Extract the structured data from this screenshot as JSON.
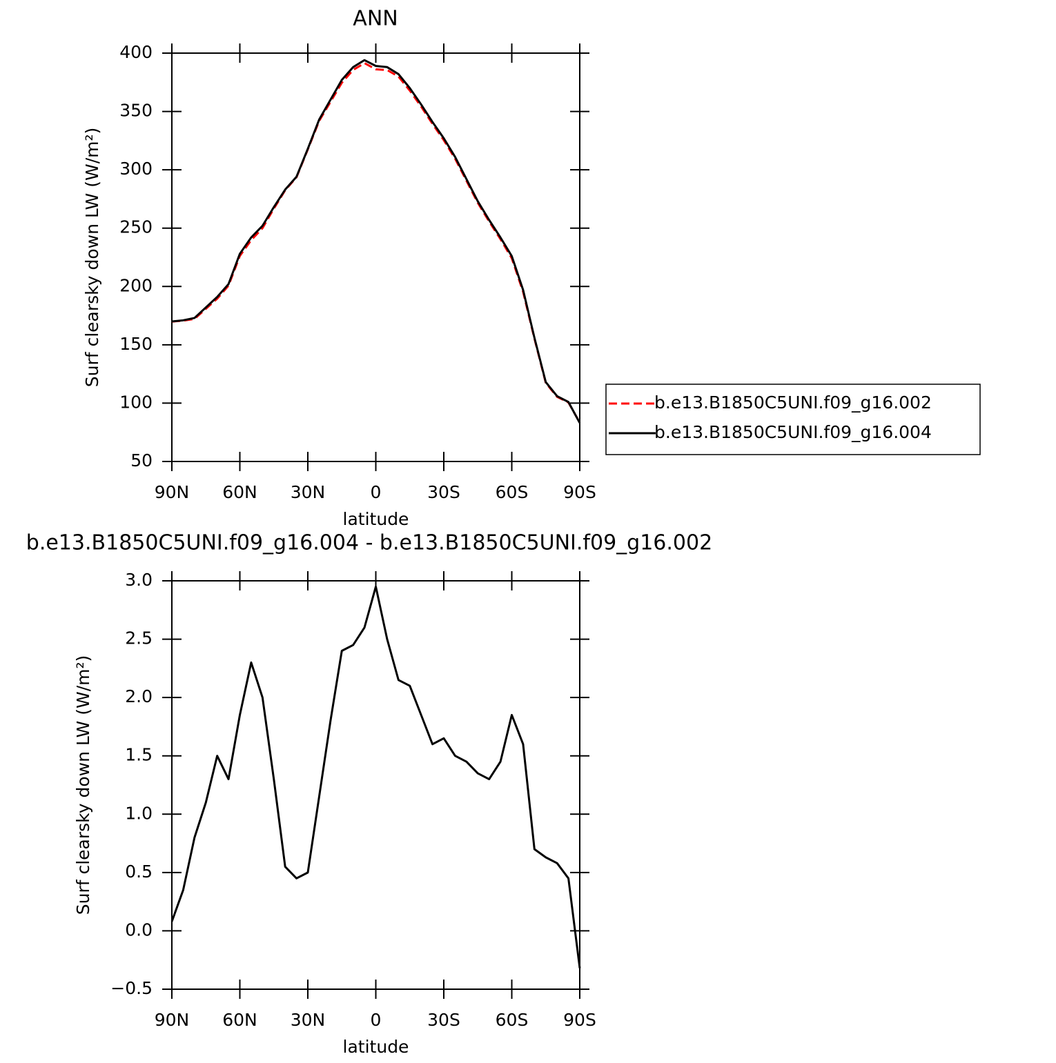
{
  "chart_data": [
    {
      "type": "line",
      "title": "ANN",
      "x_label": "latitude",
      "y_label": "Surf clearsky down LW (W/m²)",
      "x": [
        90,
        85,
        80,
        75,
        70,
        65,
        60,
        55,
        50,
        45,
        40,
        35,
        30,
        25,
        20,
        15,
        10,
        5,
        0,
        -5,
        -10,
        -15,
        -20,
        -25,
        -30,
        -35,
        -40,
        -45,
        -50,
        -55,
        -60,
        -65,
        -70,
        -75,
        -80,
        -85,
        -90
      ],
      "series": [
        {
          "name": "b.e13.B1850C5UNI.f09_g16.002",
          "color": "#ff0000",
          "dashed": true,
          "values": [
            169.9,
            170.7,
            172.2,
            180.9,
            189.5,
            200.7,
            226.2,
            239.7,
            250,
            266.7,
            282.5,
            293.6,
            317.5,
            341.9,
            358.2,
            374.6,
            385.6,
            391.4,
            386.1,
            385.5,
            379.9,
            367.9,
            354.2,
            339.4,
            325.4,
            309.5,
            290.6,
            271.7,
            255.7,
            240.6,
            224.2,
            195.4,
            155.3,
            117.4,
            105.4,
            100.6,
            83.3
          ]
        },
        {
          "name": "b.e13.B1850C5UNI.f09_g16.004",
          "color": "#000000",
          "dashed": false,
          "values": [
            170,
            171,
            173,
            182,
            191,
            202,
            228,
            242,
            252,
            268,
            283,
            294,
            318,
            343,
            360,
            377,
            388,
            394,
            389,
            388,
            382,
            370,
            356,
            341,
            327,
            311,
            292,
            273,
            257,
            242,
            226,
            197,
            156,
            118,
            106,
            101,
            83
          ]
        }
      ],
      "xlim": [
        90,
        -90
      ],
      "xticks": [
        {
          "value": 90,
          "label": "90N"
        },
        {
          "value": 60,
          "label": "60N"
        },
        {
          "value": 30,
          "label": "30N"
        },
        0,
        {
          "value": -30,
          "label": "30S"
        },
        {
          "value": -60,
          "label": "60S"
        },
        {
          "value": -90,
          "label": "90S"
        }
      ],
      "ylim": [
        50,
        400
      ],
      "yticks": [
        50,
        100,
        150,
        200,
        250,
        300,
        350,
        400
      ]
    },
    {
      "type": "line",
      "title": "b.e13.B1850C5UNI.f09_g16.004 - b.e13.B1850C5UNI.f09_g16.002",
      "x_label": "latitude",
      "y_label": "Surf clearsky down LW (W/m²)",
      "x": [
        90,
        85,
        80,
        75,
        70,
        65,
        60,
        55,
        50,
        45,
        40,
        35,
        30,
        25,
        20,
        15,
        10,
        5,
        0,
        -5,
        -10,
        -15,
        -20,
        -25,
        -30,
        -35,
        -40,
        -45,
        -50,
        -55,
        -60,
        -65,
        -70,
        -75,
        -80,
        -85,
        -90
      ],
      "color": "#000000",
      "values": [
        0.08,
        0.35,
        0.8,
        1.1,
        1.5,
        1.3,
        1.85,
        2.3,
        2.0,
        1.3,
        0.55,
        0.45,
        0.5,
        1.15,
        1.8,
        2.4,
        2.45,
        2.6,
        2.95,
        2.5,
        2.15,
        2.1,
        1.85,
        1.6,
        1.65,
        1.5,
        1.45,
        1.35,
        1.3,
        1.45,
        1.85,
        1.6,
        0.7,
        0.63,
        0.58,
        0.45,
        -0.32
      ],
      "xlim": [
        90,
        -90
      ],
      "xticks": [
        {
          "value": 90,
          "label": "90N"
        },
        {
          "value": 60,
          "label": "60N"
        },
        {
          "value": 30,
          "label": "30N"
        },
        0,
        {
          "value": -30,
          "label": "30S"
        },
        {
          "value": -60,
          "label": "60S"
        },
        {
          "value": -90,
          "label": "90S"
        }
      ],
      "ylim": [
        -0.5,
        3.0
      ],
      "yticks": [
        {
          "value": -0.5,
          "label": "−0.5"
        },
        {
          "value": 0,
          "label": "0.0"
        },
        0.5,
        {
          "value": 1,
          "label": "1.0"
        },
        1.5,
        {
          "value": 2,
          "label": "2.0"
        },
        2.5,
        {
          "value": 3,
          "label": "3.0"
        }
      ]
    }
  ]
}
